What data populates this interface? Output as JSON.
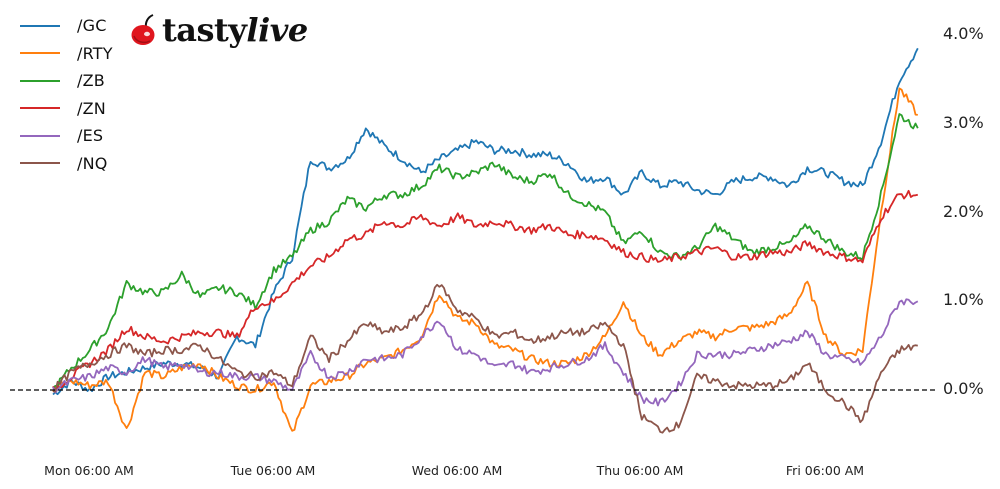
{
  "legend": {
    "items": [
      {
        "label": "/GC",
        "color": "#1f77b4"
      },
      {
        "label": "/RTY",
        "color": "#ff7f0e"
      },
      {
        "label": "/ZB",
        "color": "#2ca02c"
      },
      {
        "label": "/ZN",
        "color": "#d62728"
      },
      {
        "label": "/ES",
        "color": "#9467bd"
      },
      {
        "label": "/NQ",
        "color": "#8c564b"
      }
    ]
  },
  "logo": {
    "brand_main": "tasty",
    "brand_accent": "live",
    "cherry_color": "#e0161e"
  },
  "y_axis": {
    "ticks": [
      "4.0%",
      "3.0%",
      "2.0%",
      "1.0%",
      "0.0%"
    ]
  },
  "x_axis": {
    "ticks": [
      "Mon 06:00 AM",
      "Tue 06:00 AM",
      "Wed 06:00 AM",
      "Thu 06:00 AM",
      "Fri 06:00 AM"
    ]
  },
  "chart_data": {
    "type": "line",
    "title": "",
    "xlabel": "",
    "ylabel": "",
    "ylim": [
      -0.6,
      4.2
    ],
    "grid": false,
    "legend_position": "upper left",
    "y_axis_side": "right",
    "reference_line": {
      "y": 0.0,
      "style": "dashed",
      "color": "#000000"
    },
    "x_tick_labels": [
      "Mon 06:00 AM",
      "Tue 06:00 AM",
      "Wed 06:00 AM",
      "Thu 06:00 AM",
      "Fri 06:00 AM"
    ],
    "y_tick_labels": [
      "0.0%",
      "1.0%",
      "2.0%",
      "3.0%",
      "4.0%"
    ],
    "x": [
      0.0,
      0.1,
      0.2,
      0.3,
      0.4,
      0.5,
      0.6,
      0.7,
      0.8,
      0.9,
      1.0,
      1.1,
      1.2,
      1.3,
      1.4,
      1.5,
      1.6,
      1.7,
      1.8,
      1.9,
      2.0,
      2.1,
      2.2,
      2.3,
      2.4,
      2.5,
      2.6,
      2.7,
      2.8,
      2.9,
      3.0,
      3.1,
      3.2,
      3.3,
      3.4,
      3.5,
      3.6,
      3.7,
      3.8,
      3.9,
      4.0,
      4.1,
      4.2,
      4.3,
      4.4,
      4.5,
      4.6,
      4.7
    ],
    "x_unit": "days since Mon 06:00 AM",
    "series": [
      {
        "name": "/GC",
        "color": "#1f77b4",
        "values": [
          -0.05,
          0.1,
          0.0,
          0.15,
          0.2,
          0.25,
          0.3,
          0.3,
          0.25,
          0.15,
          0.6,
          0.5,
          1.1,
          1.5,
          2.6,
          2.5,
          2.6,
          2.95,
          2.75,
          2.6,
          2.45,
          2.6,
          2.7,
          2.8,
          2.7,
          2.7,
          2.65,
          2.65,
          2.55,
          2.35,
          2.4,
          2.2,
          2.45,
          2.3,
          2.35,
          2.25,
          2.2,
          2.35,
          2.4,
          2.4,
          2.3,
          2.5,
          2.45,
          2.35,
          2.3,
          2.8,
          3.5,
          3.85
        ]
      },
      {
        "name": "/RTY",
        "color": "#ff7f0e",
        "values": [
          0.0,
          0.1,
          0.05,
          0.1,
          -0.45,
          0.2,
          0.15,
          0.25,
          0.3,
          0.15,
          0.05,
          0.0,
          0.1,
          -0.5,
          0.05,
          0.1,
          0.15,
          0.3,
          0.35,
          0.45,
          0.6,
          1.1,
          0.8,
          0.75,
          0.5,
          0.45,
          0.35,
          0.3,
          0.3,
          0.4,
          0.6,
          1.0,
          0.6,
          0.4,
          0.55,
          0.65,
          0.6,
          0.7,
          0.7,
          0.75,
          0.85,
          1.2,
          0.6,
          0.4,
          0.45,
          2.0,
          3.4,
          3.1
        ]
      },
      {
        "name": "/ZB",
        "color": "#2ca02c",
        "values": [
          0.0,
          0.25,
          0.45,
          0.7,
          1.2,
          1.1,
          1.1,
          1.3,
          1.05,
          1.15,
          1.1,
          0.95,
          1.35,
          1.5,
          1.8,
          1.9,
          2.15,
          2.05,
          2.2,
          2.2,
          2.3,
          2.5,
          2.4,
          2.45,
          2.55,
          2.4,
          2.35,
          2.45,
          2.2,
          2.1,
          2.0,
          1.65,
          1.8,
          1.55,
          1.5,
          1.6,
          1.85,
          1.7,
          1.55,
          1.6,
          1.65,
          1.85,
          1.7,
          1.55,
          1.5,
          2.2,
          3.1,
          2.95
        ]
      },
      {
        "name": "/ZN",
        "color": "#d62728",
        "values": [
          0.0,
          0.15,
          0.3,
          0.45,
          0.7,
          0.6,
          0.55,
          0.6,
          0.65,
          0.65,
          0.6,
          0.95,
          1.0,
          1.2,
          1.4,
          1.5,
          1.7,
          1.75,
          1.9,
          1.85,
          1.95,
          1.85,
          1.95,
          1.85,
          1.9,
          1.85,
          1.8,
          1.85,
          1.75,
          1.75,
          1.7,
          1.55,
          1.5,
          1.45,
          1.5,
          1.55,
          1.6,
          1.5,
          1.5,
          1.55,
          1.55,
          1.65,
          1.55,
          1.5,
          1.45,
          1.95,
          2.2,
          2.2
        ]
      },
      {
        "name": "/ES",
        "color": "#9467bd",
        "values": [
          0.0,
          0.1,
          0.15,
          0.25,
          0.2,
          0.35,
          0.25,
          0.3,
          0.2,
          0.2,
          0.15,
          0.15,
          0.1,
          0.0,
          0.4,
          0.15,
          0.2,
          0.35,
          0.35,
          0.4,
          0.6,
          0.8,
          0.45,
          0.4,
          0.25,
          0.3,
          0.2,
          0.25,
          0.3,
          0.35,
          0.5,
          0.2,
          -0.1,
          -0.15,
          0.05,
          0.4,
          0.4,
          0.4,
          0.45,
          0.5,
          0.55,
          0.65,
          0.4,
          0.35,
          0.3,
          0.6,
          1.0,
          1.0
        ]
      },
      {
        "name": "/NQ",
        "color": "#8c564b",
        "values": [
          0.0,
          0.2,
          0.3,
          0.4,
          0.5,
          0.4,
          0.45,
          0.45,
          0.5,
          0.35,
          0.2,
          0.15,
          0.2,
          0.05,
          0.6,
          0.35,
          0.55,
          0.75,
          0.65,
          0.7,
          0.85,
          1.2,
          0.9,
          0.8,
          0.6,
          0.65,
          0.55,
          0.6,
          0.65,
          0.65,
          0.75,
          0.5,
          -0.3,
          -0.45,
          -0.4,
          0.15,
          0.1,
          0.05,
          0.05,
          0.05,
          0.1,
          0.3,
          0.0,
          -0.15,
          -0.35,
          0.2,
          0.45,
          0.5
        ]
      }
    ]
  }
}
